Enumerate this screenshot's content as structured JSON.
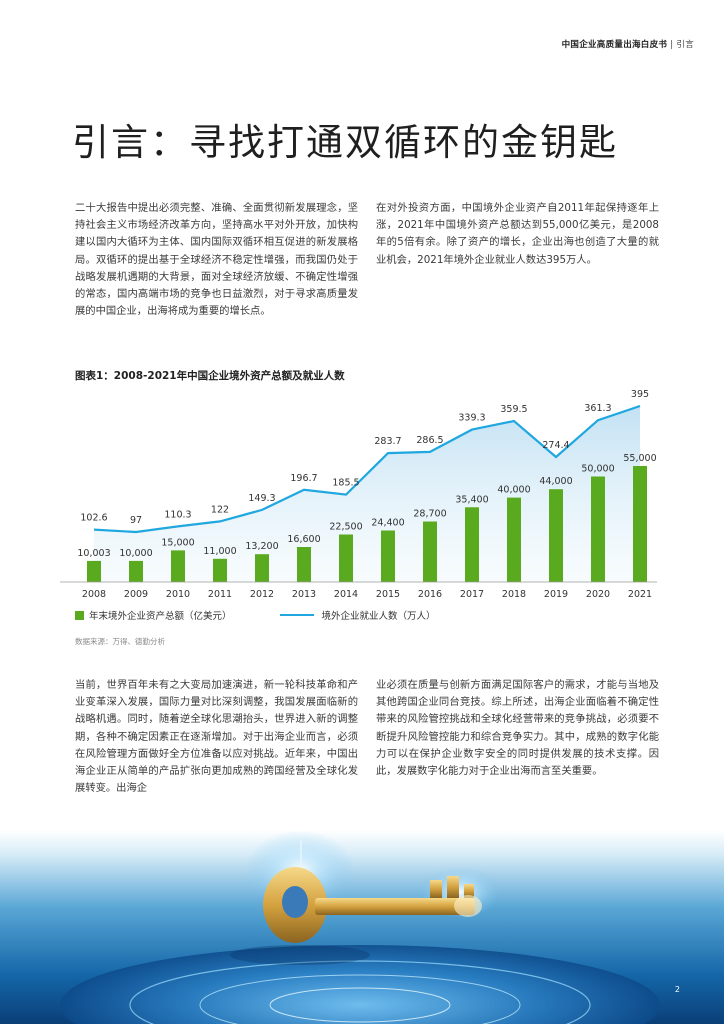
{
  "header": {
    "publication": "中国企业高质量出海白皮书",
    "separator": "|",
    "section": "引言"
  },
  "title": "引言：寻找打通双循环的金钥匙",
  "paragraphs": {
    "p1": "二十大报告中提出必须完整、准确、全面贯彻新发展理念，坚持社会主义市场经济改革方向，坚持高水平对外开放，加快构建以国内大循环为主体、国内国际双循环相互促进的新发展格局。双循环的提出基于全球经济不稳定性增强，而我国仍处于战略发展机遇期的大背景，面对全球经济放缓、不确定性增强的常态，国内高端市场的竞争也日益激烈，对于寻求高质量发展的中国企业，出海将成为重要的增长点。",
    "p2": "在对外投资方面，中国境外企业资产自2011年起保持逐年上涨，2021年中国境外资产总额达到55,000亿美元，是2008年的5倍有余。除了资产的增长，企业出海也创造了大量的就业机会，2021年境外企业就业人数达395万人。",
    "p3": "当前，世界百年未有之大变局加速演进，新一轮科技革命和产业变革深入发展，国际力量对比深刻调整，我国发展面临新的战略机遇。同时，随着逆全球化思潮抬头，世界进入新的调整期，各种不确定因素正在逐渐增加。对于出海企业而言，必须在风险管理方面做好全方位准备以应对挑战。近年来，中国出海企业正从简单的产品扩张向更加成熟的跨国经营及全球化发展转变。出海企",
    "p4": "业必须在质量与创新方面满足国际客户的需求，才能与当地及其他跨国企业同台竞技。综上所述，出海企业面临着不确定性带来的风险管控挑战和全球化经营带来的竞争挑战，必须要不断提升风险管控能力和综合竞争实力。其中，成熟的数字化能力可以在保护企业数字安全的同时提供发展的技术支撑。因此，发展数字化能力对于企业出海而言至关重要。"
  },
  "chart_title": "图表1：2008-2021年中国企业境外资产总额及就业人数",
  "chart_data": {
    "type": "bar",
    "categories": [
      "2008",
      "2009",
      "2010",
      "2011",
      "2012",
      "2013",
      "2014",
      "2015",
      "2016",
      "2017",
      "2018",
      "2019",
      "2020",
      "2021"
    ],
    "series": [
      {
        "name": "年末境外企业资产总额（亿美元）",
        "type": "bar",
        "values": [
          10003,
          10000,
          15000,
          11000,
          13200,
          16600,
          22500,
          24400,
          28700,
          35400,
          40000,
          44000,
          50000,
          55000
        ],
        "labels": [
          "10,003",
          "10,000",
          "15,000",
          "11,000",
          "13,200",
          "16,600",
          "22,500",
          "24,400",
          "28,700",
          "35,400",
          "40,000",
          "44,000",
          "50,000",
          "55,000"
        ]
      },
      {
        "name": "境外企业就业人数（万人）",
        "type": "line",
        "values": [
          102.6,
          97,
          110.3,
          122,
          149.3,
          196.7,
          185.5,
          283.7,
          286.5,
          339.3,
          359.5,
          274.4,
          361.3,
          395
        ],
        "labels": [
          "102.6",
          "97",
          "110.3",
          "122",
          "149.3",
          "196.7",
          "185.5",
          "283.7",
          "286.5",
          "339.3",
          "359.5",
          "274.4",
          "361.3",
          "395"
        ]
      }
    ],
    "bar_color": "#5aaa1f",
    "line_color": "#20a7e0",
    "legend_position": "bottom-left",
    "grid": false
  },
  "legend": {
    "bar_label": "年末境外企业资产总额（亿美元）",
    "line_label": "境外企业就业人数（万人）"
  },
  "source": "数据来源：万得、德勤分析",
  "page_number": "2"
}
